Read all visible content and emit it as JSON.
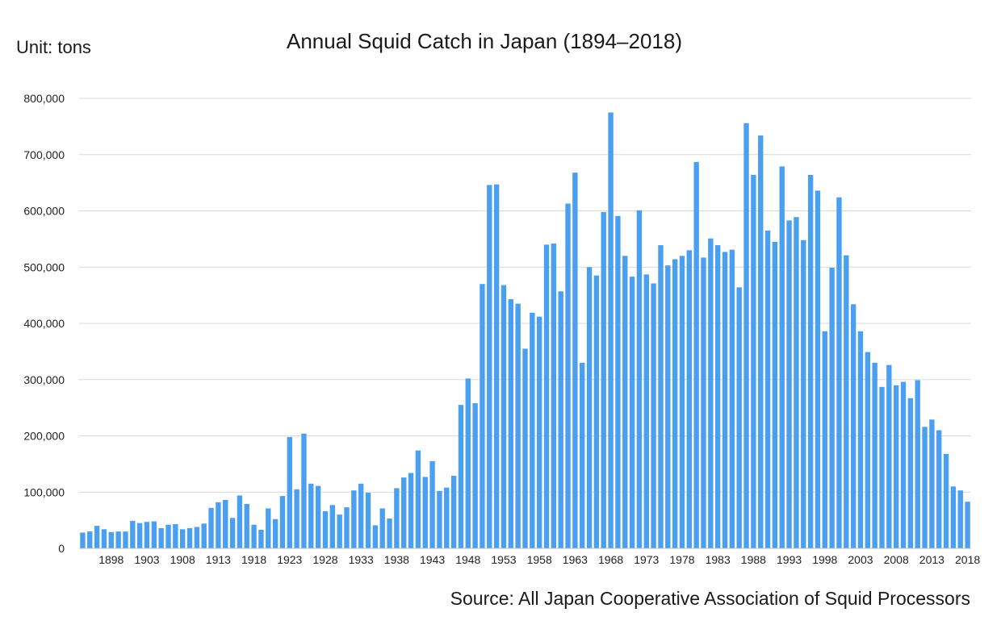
{
  "header": {
    "unit_label": "Unit: tons",
    "title": "Annual Squid Catch in Japan (1894–2018)"
  },
  "footer": {
    "source": "Source: All Japan Cooperative Association of Squid Processors"
  },
  "chart_data": {
    "type": "bar",
    "title": "Annual Squid Catch in Japan (1894–2018)",
    "ylabel": "Unit: tons",
    "ylim": [
      0,
      800000
    ],
    "y_ticks": [
      0,
      100000,
      200000,
      300000,
      400000,
      500000,
      600000,
      700000,
      800000
    ],
    "y_tick_labels": [
      "0",
      "100,000",
      "200,000",
      "300,000",
      "400,000",
      "500,000",
      "600,000",
      "700,000",
      "800,000"
    ],
    "x_tick_labels": [
      "1898",
      "1903",
      "1908",
      "1913",
      "1918",
      "1923",
      "1928",
      "1933",
      "1938",
      "1943",
      "1948",
      "1953",
      "1958",
      "1963",
      "1968",
      "1973",
      "1978",
      "1983",
      "1988",
      "1993",
      "1998",
      "2003",
      "2008",
      "2013",
      "2018"
    ],
    "grid": true,
    "bar_color": "#4a9ff0",
    "categories": [
      1894,
      1895,
      1896,
      1897,
      1898,
      1899,
      1900,
      1901,
      1902,
      1903,
      1904,
      1905,
      1906,
      1907,
      1908,
      1909,
      1910,
      1911,
      1912,
      1913,
      1914,
      1915,
      1916,
      1917,
      1918,
      1919,
      1920,
      1921,
      1922,
      1923,
      1924,
      1925,
      1926,
      1927,
      1928,
      1929,
      1930,
      1931,
      1932,
      1933,
      1934,
      1935,
      1936,
      1937,
      1938,
      1939,
      1940,
      1941,
      1942,
      1943,
      1944,
      1945,
      1946,
      1947,
      1948,
      1949,
      1950,
      1951,
      1952,
      1953,
      1954,
      1955,
      1956,
      1957,
      1958,
      1959,
      1960,
      1961,
      1962,
      1963,
      1964,
      1965,
      1966,
      1967,
      1968,
      1969,
      1970,
      1971,
      1972,
      1973,
      1974,
      1975,
      1976,
      1977,
      1978,
      1979,
      1980,
      1981,
      1982,
      1983,
      1984,
      1985,
      1986,
      1987,
      1988,
      1989,
      1990,
      1991,
      1992,
      1993,
      1994,
      1995,
      1996,
      1997,
      1998,
      1999,
      2000,
      2001,
      2002,
      2003,
      2004,
      2005,
      2006,
      2007,
      2008,
      2009,
      2010,
      2011,
      2012,
      2013,
      2014,
      2015,
      2016,
      2017,
      2018
    ],
    "values": [
      28000,
      30000,
      40000,
      34000,
      29000,
      30000,
      30000,
      49000,
      45000,
      47000,
      48000,
      36000,
      42000,
      43000,
      34000,
      36000,
      38000,
      44000,
      72000,
      82000,
      86000,
      54000,
      94000,
      79000,
      42000,
      33000,
      71000,
      52000,
      93000,
      198000,
      105000,
      204000,
      115000,
      111000,
      66000,
      77000,
      60000,
      73000,
      103000,
      115000,
      99000,
      41000,
      71000,
      53000,
      107000,
      126000,
      134000,
      174000,
      127000,
      155000,
      102000,
      108000,
      129000,
      255000,
      302000,
      258000,
      470000,
      646000,
      647000,
      468000,
      443000,
      435000,
      355000,
      419000,
      412000,
      540000,
      542000,
      457000,
      613000,
      668000,
      330000,
      500000,
      485000,
      598000,
      775000,
      591000,
      520000,
      483000,
      601000,
      487000,
      471000,
      539000,
      503000,
      514000,
      520000,
      530000,
      687000,
      517000,
      551000,
      539000,
      527000,
      531000,
      464000,
      756000,
      664000,
      734000,
      565000,
      545000,
      679000,
      583000,
      589000,
      548000,
      664000,
      636000,
      386000,
      499000,
      624000,
      521000,
      434000,
      386000,
      349000,
      330000,
      287000,
      326000,
      290000,
      296000,
      267000,
      299000,
      216000,
      229000,
      210000,
      168000,
      110000,
      103000,
      83000
    ]
  }
}
